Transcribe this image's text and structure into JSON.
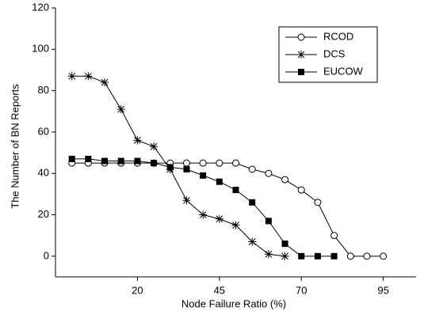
{
  "chart_data": {
    "type": "line",
    "x_label": "Node Failure Ratio (%)",
    "y_label": "The Number of BN Reports",
    "x": [
      0,
      5,
      10,
      15,
      20,
      25,
      30,
      35,
      40,
      45,
      50,
      55,
      60,
      65,
      70,
      75,
      80,
      85,
      90,
      95
    ],
    "series": [
      {
        "name": "RCOD",
        "color": "#000000",
        "marker": "circle",
        "values": [
          45,
          45,
          45,
          45,
          45,
          45,
          45,
          45,
          45,
          45,
          45,
          42,
          40,
          37,
          32,
          26,
          10,
          0,
          0,
          0
        ]
      },
      {
        "name": "DCS",
        "color": "#000000",
        "marker": "asterisk",
        "values": [
          87,
          87,
          84,
          71,
          56,
          53,
          42,
          27,
          20,
          18,
          15,
          7,
          1,
          0,
          null,
          null,
          null,
          null,
          null,
          null
        ]
      },
      {
        "name": "EUCOW",
        "color": "#000000",
        "marker": "square",
        "values": [
          47,
          47,
          46,
          46,
          46,
          45,
          43,
          42,
          39,
          36,
          32,
          26,
          17,
          6,
          0,
          0,
          0,
          null,
          null,
          null
        ]
      }
    ],
    "xlim": [
      -5,
      105
    ],
    "xticks": [
      20,
      45,
      70,
      95
    ],
    "ylim": [
      -10,
      120
    ],
    "yticks": [
      0,
      20,
      40,
      60,
      80,
      100,
      120
    ],
    "legend": "upper right"
  }
}
